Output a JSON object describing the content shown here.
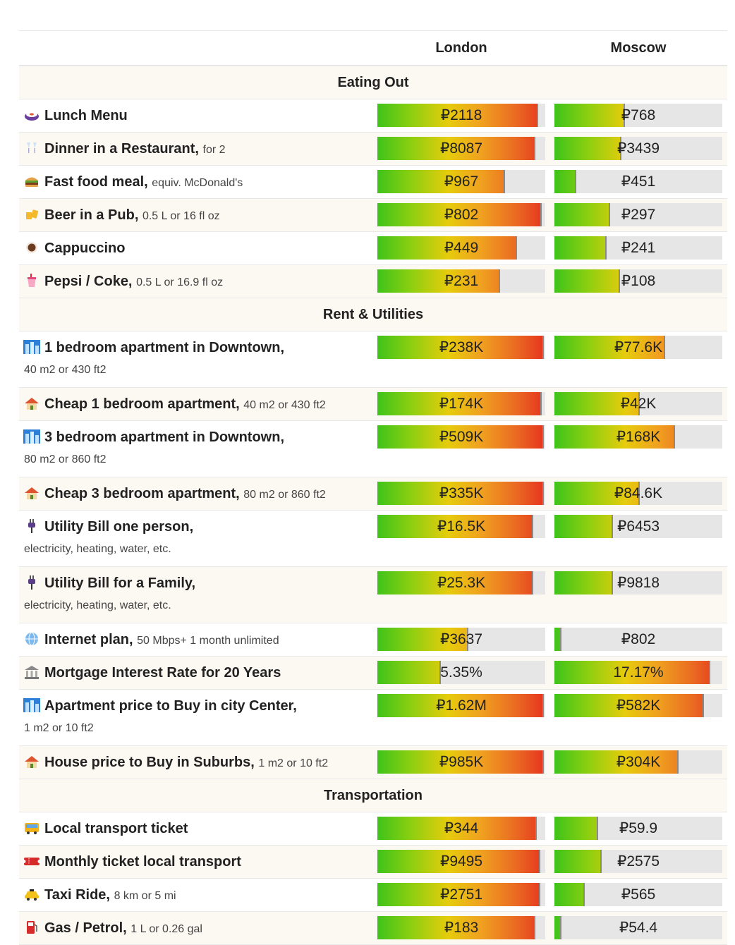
{
  "columns": [
    "London",
    "Moscow"
  ],
  "sections": [
    {
      "title": "Eating Out",
      "rows": [
        {
          "icon": "sushi-icon",
          "name": "Lunch Menu",
          "sub": "",
          "sub2": "",
          "values": [
            "₽2118",
            "₽768"
          ],
          "fills": [
            0.96,
            0.42
          ]
        },
        {
          "icon": "champagne-icon",
          "name": "Dinner in a Restaurant,",
          "sub": "for 2",
          "sub2": "",
          "values": [
            "₽8087",
            "₽3439"
          ],
          "fills": [
            0.94,
            0.4
          ]
        },
        {
          "icon": "burger-icon",
          "name": "Fast food meal,",
          "sub": "equiv. McDonald's",
          "sub2": "",
          "values": [
            "₽967",
            "₽451"
          ],
          "fills": [
            0.76,
            0.13
          ]
        },
        {
          "icon": "beer-icon",
          "name": "Beer in a Pub,",
          "sub": "0.5 L or 16 fl oz",
          "sub2": "",
          "values": [
            "₽802",
            "₽297"
          ],
          "fills": [
            0.98,
            0.33
          ]
        },
        {
          "icon": "coffee-icon",
          "name": "Cappuccino",
          "sub": "",
          "sub2": "",
          "values": [
            "₽449",
            "₽241"
          ],
          "fills": [
            0.83,
            0.31
          ]
        },
        {
          "icon": "soda-icon",
          "name": "Pepsi / Coke,",
          "sub": "0.5 L or 16.9 fl oz",
          "sub2": "",
          "values": [
            "₽231",
            "₽108"
          ],
          "fills": [
            0.73,
            0.39
          ]
        }
      ]
    },
    {
      "title": "Rent & Utilities",
      "rows": [
        {
          "icon": "cityscape-icon",
          "name": "1 bedroom apartment in Downtown,",
          "sub": "",
          "sub2": "40 m2 or 430 ft2",
          "values": [
            "₽238K",
            "₽77.6K"
          ],
          "fills": [
            0.99,
            0.66
          ]
        },
        {
          "icon": "house-icon",
          "name": "Cheap 1 bedroom apartment,",
          "sub": "40 m2 or 430 ft2",
          "sub2": "",
          "values": [
            "₽174K",
            "₽42K"
          ],
          "fills": [
            0.98,
            0.51
          ]
        },
        {
          "icon": "cityscape-icon",
          "name": "3 bedroom apartment in Downtown,",
          "sub": "",
          "sub2": "80 m2 or 860 ft2",
          "values": [
            "₽509K",
            "₽168K"
          ],
          "fills": [
            0.99,
            0.72
          ]
        },
        {
          "icon": "house-icon",
          "name": "Cheap 3 bedroom apartment,",
          "sub": "80 m2 or 860 ft2",
          "sub2": "",
          "values": [
            "₽335K",
            "₽84.6K"
          ],
          "fills": [
            0.99,
            0.51
          ]
        },
        {
          "icon": "plug-icon",
          "name": "Utility Bill one person,",
          "sub": "",
          "sub2": "electricity, heating, water, etc.",
          "values": [
            "₽16.5K",
            "₽6453"
          ],
          "fills": [
            0.93,
            0.35
          ]
        },
        {
          "icon": "plug-icon",
          "name": "Utility Bill for a Family,",
          "sub": "",
          "sub2": "electricity, heating, water, etc.",
          "values": [
            "₽25.3K",
            "₽9818"
          ],
          "fills": [
            0.93,
            0.35
          ]
        },
        {
          "icon": "globe-icon",
          "name": "Internet plan,",
          "sub": "50 Mbps+ 1 month unlimited",
          "sub2": "",
          "values": [
            "₽3637",
            "₽802"
          ],
          "fills": [
            0.54,
            0.04
          ]
        },
        {
          "icon": "bank-icon",
          "name": "Mortgage Interest Rate for 20 Years",
          "sub": "",
          "sub2": "",
          "values": [
            "5.35%",
            "17.17%"
          ],
          "fills": [
            0.38,
            0.93
          ]
        },
        {
          "icon": "cityscape-icon",
          "name": "Apartment price to Buy in city Center,",
          "sub": "",
          "sub2": "1 m2 or 10 ft2",
          "values": [
            "₽1.62M",
            "₽582K"
          ],
          "fills": [
            0.99,
            0.89
          ]
        },
        {
          "icon": "house-icon",
          "name": "House price to Buy in Suburbs,",
          "sub": "1 m2 or 10 ft2",
          "sub2": "",
          "values": [
            "₽985K",
            "₽304K"
          ],
          "fills": [
            0.99,
            0.74
          ]
        }
      ]
    },
    {
      "title": "Transportation",
      "rows": [
        {
          "icon": "bus-icon",
          "name": "Local transport ticket",
          "sub": "",
          "sub2": "",
          "values": [
            "₽344",
            "₽59.9"
          ],
          "fills": [
            0.95,
            0.26
          ]
        },
        {
          "icon": "ticket-icon",
          "name": "Monthly ticket local transport",
          "sub": "",
          "sub2": "",
          "values": [
            "₽9495",
            "₽2575"
          ],
          "fills": [
            0.97,
            0.28
          ]
        },
        {
          "icon": "taxi-icon",
          "name": "Taxi Ride,",
          "sub": "8 km or 5 mi",
          "sub2": "",
          "values": [
            "₽2751",
            "₽565"
          ],
          "fills": [
            0.97,
            0.18
          ]
        },
        {
          "icon": "fuel-pump-icon",
          "name": "Gas / Petrol,",
          "sub": "1 L or 0.26 gal",
          "sub2": "",
          "values": [
            "₽183",
            "₽54.4"
          ],
          "fills": [
            0.94,
            0.04
          ]
        }
      ]
    }
  ]
}
